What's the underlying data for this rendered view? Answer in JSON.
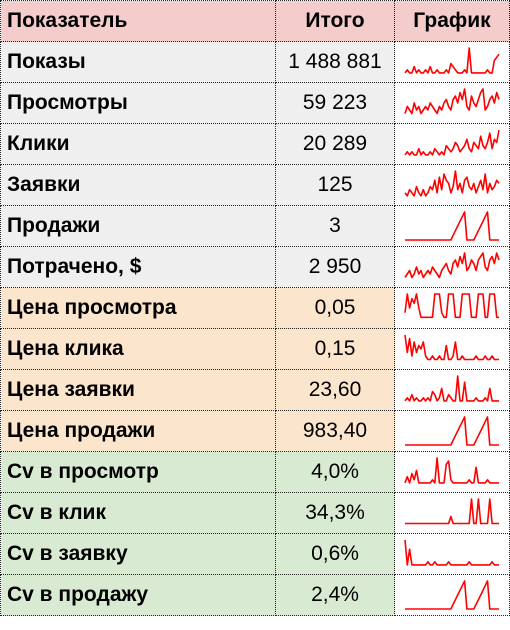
{
  "header": {
    "col1": "Показатель",
    "col2": "Итого",
    "col3": "График"
  },
  "spark_color": "#ff0000",
  "rows": [
    {
      "label": "Показы",
      "value": "1 488 881",
      "group": "gray",
      "spark": [
        1,
        2,
        1,
        1,
        3,
        1,
        2,
        1,
        1,
        2,
        1,
        3,
        1,
        1,
        2,
        1,
        1,
        1,
        2,
        1,
        4,
        3,
        2,
        1,
        1,
        1,
        2,
        1,
        9,
        1,
        1,
        1,
        1,
        1,
        1,
        1,
        2,
        1,
        1,
        5,
        6,
        7
      ]
    },
    {
      "label": "Просмотры",
      "value": "59 223",
      "group": "gray",
      "spark": [
        1,
        3,
        2,
        1,
        4,
        2,
        3,
        1,
        2,
        3,
        2,
        4,
        3,
        2,
        1,
        3,
        2,
        4,
        5,
        3,
        2,
        5,
        6,
        4,
        7,
        5,
        8,
        3,
        2,
        6,
        4,
        3,
        5,
        7,
        8,
        2,
        3,
        5,
        6,
        4,
        7,
        5
      ]
    },
    {
      "label": "Клики",
      "value": "20 289",
      "group": "gray",
      "spark": [
        1,
        2,
        1,
        2,
        1,
        1,
        3,
        1,
        2,
        1,
        1,
        2,
        1,
        3,
        2,
        1,
        2,
        1,
        4,
        3,
        2,
        3,
        5,
        4,
        2,
        3,
        4,
        6,
        3,
        2,
        5,
        4,
        3,
        7,
        4,
        3,
        5,
        8,
        3,
        6,
        5,
        9
      ]
    },
    {
      "label": "Заявки",
      "value": "125",
      "group": "gray",
      "spark": [
        2,
        1,
        3,
        2,
        1,
        4,
        2,
        1,
        3,
        1,
        2,
        4,
        3,
        6,
        2,
        7,
        3,
        8,
        6,
        5,
        2,
        4,
        9,
        3,
        5,
        2,
        6,
        7,
        4,
        3,
        5,
        2,
        4,
        6,
        3,
        8,
        2,
        5,
        3,
        4,
        6,
        5
      ]
    },
    {
      "label": "Продажи",
      "value": "3",
      "group": "gray",
      "spark": [
        0,
        0,
        0,
        0,
        0,
        0,
        0,
        0,
        0,
        0,
        0,
        0,
        0,
        0,
        0,
        0,
        0,
        0,
        0,
        0,
        0,
        1,
        2,
        3,
        4,
        5,
        6,
        0,
        0,
        0,
        0,
        1,
        2,
        3,
        4,
        5,
        6,
        0,
        0,
        0,
        0,
        0
      ]
    },
    {
      "label": "Потрачено, $",
      "value": "2 950",
      "group": "gray",
      "spark": [
        1,
        2,
        3,
        1,
        2,
        4,
        2,
        3,
        1,
        2,
        3,
        2,
        4,
        3,
        2,
        1,
        3,
        4,
        5,
        3,
        2,
        5,
        6,
        4,
        7,
        5,
        8,
        3,
        4,
        6,
        5,
        3,
        6,
        7,
        8,
        4,
        3,
        6,
        7,
        5,
        8,
        6
      ]
    },
    {
      "label": "Цена просмотра",
      "value": "0,05",
      "group": "orange",
      "spark": [
        2,
        6,
        3,
        5,
        4,
        6,
        3,
        1,
        1,
        1,
        1,
        1,
        1,
        6,
        6,
        6,
        2,
        1,
        1,
        6,
        6,
        6,
        1,
        1,
        1,
        6,
        6,
        6,
        6,
        1,
        1,
        1,
        6,
        6,
        6,
        1,
        1,
        6,
        6,
        6,
        1,
        1
      ]
    },
    {
      "label": "Цена клика",
      "value": "0,15",
      "group": "orange",
      "spark": [
        8,
        3,
        7,
        2,
        6,
        3,
        5,
        4,
        6,
        2,
        1,
        1,
        2,
        1,
        1,
        2,
        1,
        1,
        5,
        1,
        1,
        2,
        6,
        1,
        1,
        2,
        1,
        1,
        1,
        1,
        1,
        2,
        1,
        1,
        1,
        2,
        1,
        1,
        2,
        1,
        1,
        1
      ]
    },
    {
      "label": "Цена заявки",
      "value": "23,60",
      "group": "orange",
      "spark": [
        1,
        2,
        1,
        3,
        1,
        2,
        1,
        1,
        2,
        1,
        2,
        1,
        4,
        3,
        1,
        2,
        5,
        1,
        1,
        3,
        2,
        1,
        1,
        9,
        1,
        1,
        7,
        1,
        1,
        1,
        1,
        2,
        1,
        1,
        1,
        2,
        1,
        5,
        1,
        1,
        1,
        1
      ]
    },
    {
      "label": "Цена продажи",
      "value": "983,40",
      "group": "orange",
      "spark": [
        0,
        0,
        0,
        0,
        0,
        0,
        0,
        0,
        0,
        0,
        0,
        0,
        0,
        0,
        0,
        0,
        0,
        0,
        0,
        0,
        0,
        1,
        2,
        3,
        4,
        5,
        6,
        0,
        0,
        0,
        0,
        1,
        2,
        3,
        4,
        5,
        6,
        0,
        0,
        0,
        0,
        0
      ]
    },
    {
      "label": "Cv в просмотр",
      "value": "4,0%",
      "group": "green",
      "spark": [
        1,
        3,
        1,
        4,
        2,
        5,
        1,
        1,
        1,
        1,
        1,
        1,
        2,
        1,
        9,
        1,
        1,
        1,
        7,
        8,
        2,
        1,
        1,
        1,
        1,
        1,
        1,
        1,
        2,
        1,
        1,
        6,
        1,
        1,
        1,
        1,
        2,
        1,
        1,
        1,
        1,
        1
      ]
    },
    {
      "label": "Cv в клик",
      "value": "34,3%",
      "group": "green",
      "spark": [
        1,
        1,
        1,
        1,
        1,
        1,
        1,
        1,
        1,
        1,
        1,
        1,
        1,
        1,
        1,
        1,
        1,
        1,
        1,
        1,
        3,
        1,
        1,
        1,
        1,
        1,
        1,
        1,
        1,
        8,
        1,
        1,
        8,
        1,
        1,
        1,
        1,
        8,
        1,
        1,
        1,
        1
      ]
    },
    {
      "label": "Cv в заявку",
      "value": "0,6%",
      "group": "green",
      "spark": [
        9,
        1,
        6,
        1,
        1,
        1,
        1,
        1,
        1,
        1,
        2,
        1,
        1,
        2,
        1,
        1,
        1,
        1,
        1,
        2,
        1,
        1,
        1,
        1,
        1,
        1,
        1,
        1,
        2,
        1,
        1,
        1,
        1,
        1,
        1,
        1,
        1,
        1,
        2,
        1,
        1,
        1
      ]
    },
    {
      "label": "Cv в продажу",
      "value": "2,4%",
      "group": "green",
      "spark": [
        0,
        0,
        0,
        0,
        0,
        0,
        0,
        0,
        0,
        0,
        0,
        0,
        0,
        0,
        0,
        0,
        0,
        0,
        0,
        0,
        0,
        1,
        2,
        3,
        4,
        5,
        6,
        0,
        0,
        0,
        0,
        1,
        2,
        3,
        4,
        5,
        6,
        0,
        0,
        0,
        0,
        0
      ]
    }
  ]
}
